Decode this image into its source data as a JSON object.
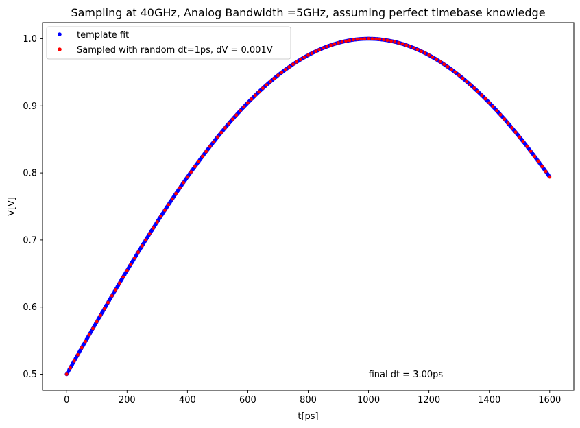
{
  "chart_data": {
    "type": "scatter",
    "title": "Sampling at 40GHz, Analog Bandwidth =5GHz, assuming perfect timebase knowledge",
    "xlabel": "t[ps]",
    "ylabel": "V[V]",
    "xlim": [
      -80,
      1680
    ],
    "ylim": [
      0.476,
      1.024
    ],
    "xticks": [
      0,
      200,
      400,
      600,
      800,
      1000,
      1200,
      1400,
      1600
    ],
    "yticks": [
      0.5,
      0.6,
      0.7,
      0.8,
      0.9,
      1.0
    ],
    "xtick_labels": [
      "0",
      "200",
      "400",
      "600",
      "800",
      "1000",
      "1200",
      "1400",
      "1600"
    ],
    "ytick_labels": [
      "0.5",
      "0.6",
      "0.7",
      "0.8",
      "0.9",
      "1.0"
    ],
    "grid": false,
    "legend_position": "top-left",
    "curve": {
      "form": "0.5 + 0.5*sin(pi*t/2000)",
      "t_start": 0,
      "t_end": 1600
    },
    "series": [
      {
        "name": "template fit",
        "color": "#0000ff",
        "t_step": 3
      },
      {
        "name": "Sampled with random dt=1ps, dV = 0.001V",
        "color": "#ff0000",
        "t": [
          0,
          12,
          25,
          37,
          50,
          62,
          75,
          87,
          100,
          112,
          125,
          137,
          150,
          162,
          175,
          187,
          200,
          212,
          225,
          237,
          250,
          262,
          275,
          287,
          300,
          312,
          325,
          337,
          350,
          362,
          375,
          387,
          400,
          412,
          425,
          437,
          450,
          462,
          475,
          487,
          500,
          512,
          525,
          537,
          550,
          562,
          575,
          587,
          600,
          612,
          625,
          637,
          650,
          662,
          675,
          687,
          700,
          712,
          725,
          737,
          750,
          762,
          775,
          787,
          800,
          812,
          825,
          837,
          850,
          862,
          875,
          887,
          900,
          912,
          925,
          937,
          950,
          962,
          975,
          987,
          1000,
          1012,
          1025,
          1037,
          1050,
          1062,
          1075,
          1087,
          1100,
          1112,
          1125,
          1137,
          1150,
          1162,
          1175,
          1187,
          1200,
          1212,
          1225,
          1237,
          1250,
          1262,
          1275,
          1287,
          1300,
          1312,
          1325,
          1337,
          1350,
          1362,
          1375,
          1387,
          1400,
          1412,
          1425,
          1437,
          1450,
          1462,
          1475,
          1487,
          1500,
          1512,
          1525,
          1537,
          1550,
          1562,
          1575,
          1587,
          1600
        ]
      }
    ],
    "annotations": [
      {
        "text": "final dt = 3.00ps",
        "x": 1000,
        "y": 0.5
      }
    ]
  }
}
